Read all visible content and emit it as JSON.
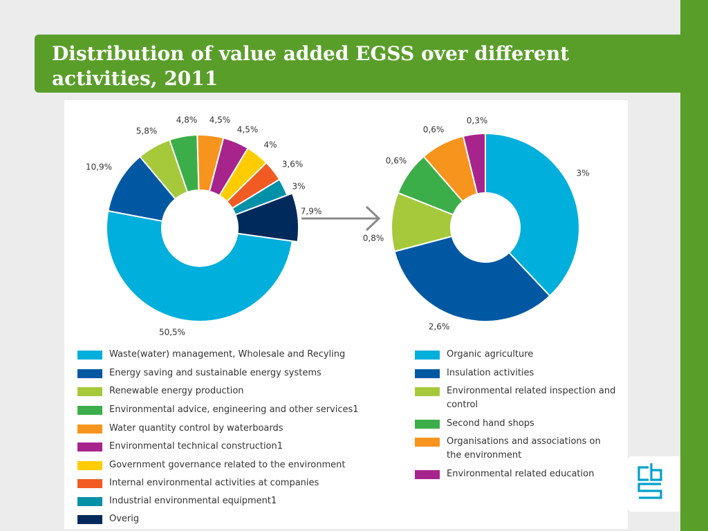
{
  "slide": {
    "title": "Distribution of value added EGSS over different activities, 2011"
  },
  "colors": {
    "brand_green": "#5a9e2a",
    "logo_blue": "#00a1cd",
    "arrow_gray": "#8a8a8a"
  },
  "chart_data": [
    {
      "type": "pie",
      "variant": "donut",
      "title": "",
      "slices": [
        {
          "label": "Waste(water)  management, Wholesale and Recyling",
          "value": 50.5,
          "value_label": "50,5%",
          "color": "#00afdb"
        },
        {
          "label": "Energy saving and sustainable energy systems",
          "value": 10.9,
          "value_label": "10,9%",
          "color": "#0058a3"
        },
        {
          "label": "Renewable energy production",
          "value": 5.8,
          "value_label": "5,8%",
          "color": "#a6c93c"
        },
        {
          "label": "Environmental advice, engineering and other services1",
          "value": 4.8,
          "value_label": "4,8%",
          "color": "#3cae49"
        },
        {
          "label": "Water quantity control by waterboards",
          "value": 4.5,
          "value_label": "4,5%",
          "color": "#f7941d"
        },
        {
          "label": "Environmental technical construction1",
          "value": 4.5,
          "value_label": "4,5%",
          "color": "#a7248c"
        },
        {
          "label": "Government governance related to the environment",
          "value": 4.0,
          "value_label": "4%",
          "color": "#ffcc00"
        },
        {
          "label": "Internal environmental activities at companies",
          "value": 3.6,
          "value_label": "3,6%",
          "color": "#f15a22"
        },
        {
          "label": "Industrial environmental equipment1",
          "value": 3.0,
          "value_label": "3%",
          "color": "#0090a8"
        },
        {
          "label": "Overig",
          "value": 7.9,
          "value_label": "7,9%",
          "color": "#002a5c"
        }
      ]
    },
    {
      "type": "pie",
      "variant": "donut",
      "title": "",
      "slices": [
        {
          "label": "Organic agriculture",
          "value": 3.0,
          "value_label": "3%",
          "color": "#00afdb"
        },
        {
          "label": "Insulation activities",
          "value": 2.6,
          "value_label": "2,6%",
          "color": "#0058a3"
        },
        {
          "label": "Environmental related inspection and control",
          "value": 0.8,
          "value_label": "0,8%",
          "color": "#a6c93c"
        },
        {
          "label": "Second hand shops",
          "value": 0.6,
          "value_label": "0,6%",
          "color": "#3cae49"
        },
        {
          "label": "Organisations and associations on the environment",
          "value": 0.6,
          "value_label": "0,6%",
          "color": "#f7941d"
        },
        {
          "label": "Environmental related education",
          "value": 0.3,
          "value_label": "0,3%",
          "color": "#a7248c"
        }
      ]
    }
  ]
}
